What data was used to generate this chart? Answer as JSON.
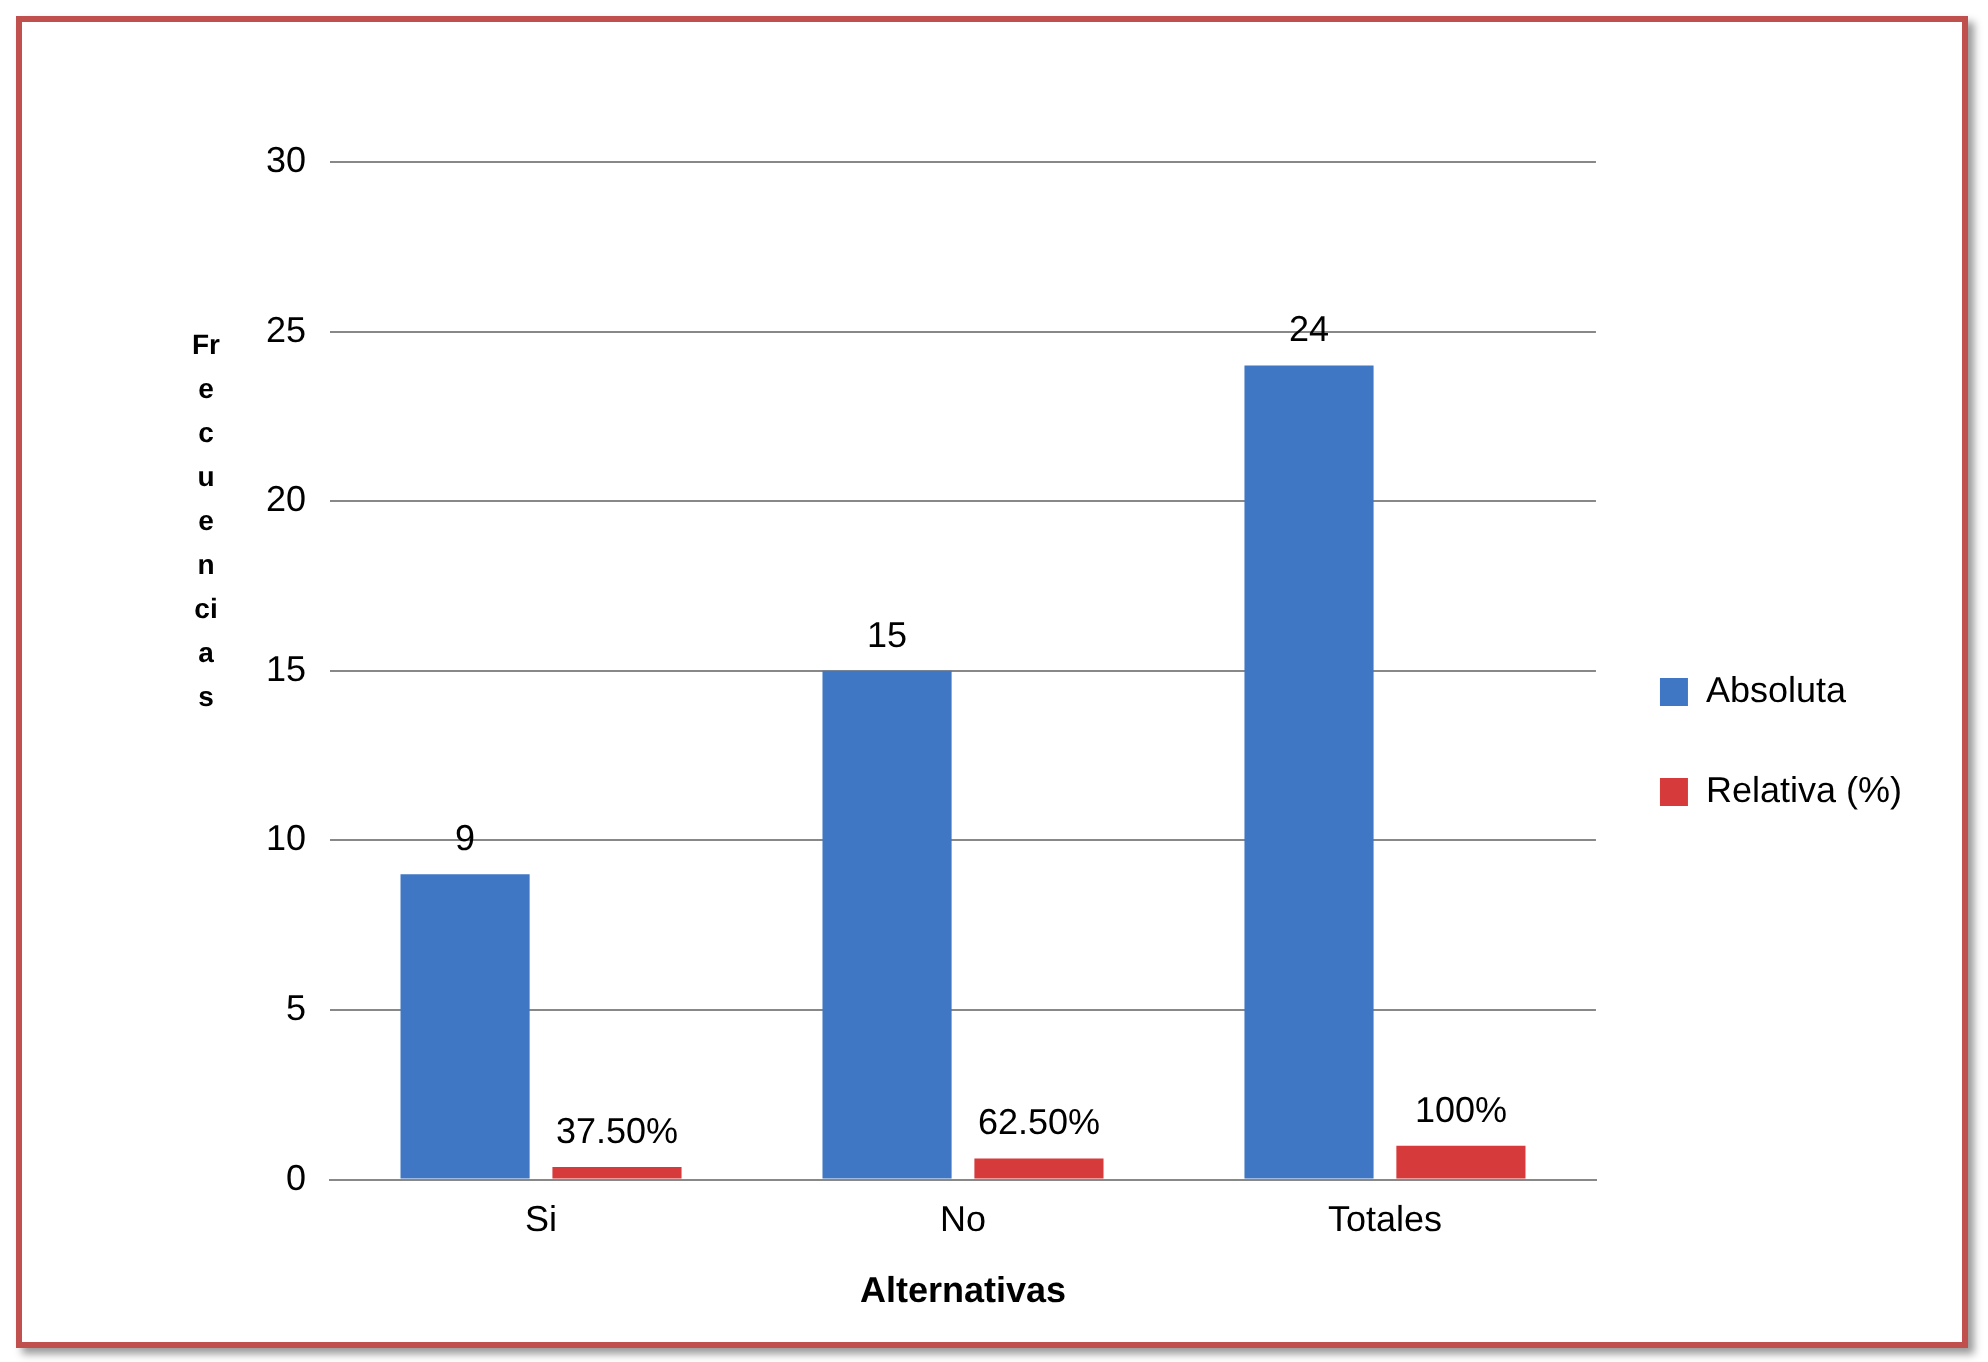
{
  "chart_data": {
    "type": "bar",
    "xlabel": "Alternativas",
    "ylabel": "Frecuencias",
    "categories": [
      "Si",
      "No",
      "Totales"
    ],
    "series": [
      {
        "name": "Absoluta",
        "color": "#3f77c4",
        "values": [
          9,
          15,
          24
        ],
        "value_labels": [
          "9",
          "15",
          "24"
        ]
      },
      {
        "name": "Relativa (%)",
        "color": "#d63a3a",
        "values": [
          0.375,
          0.625,
          1
        ],
        "value_labels": [
          "37.50%",
          "62.50%",
          "100%"
        ]
      }
    ],
    "ylim": [
      0,
      30
    ],
    "yticks": [
      0,
      5,
      10,
      15,
      20,
      25,
      30
    ],
    "grid": "y",
    "legend": "right"
  }
}
